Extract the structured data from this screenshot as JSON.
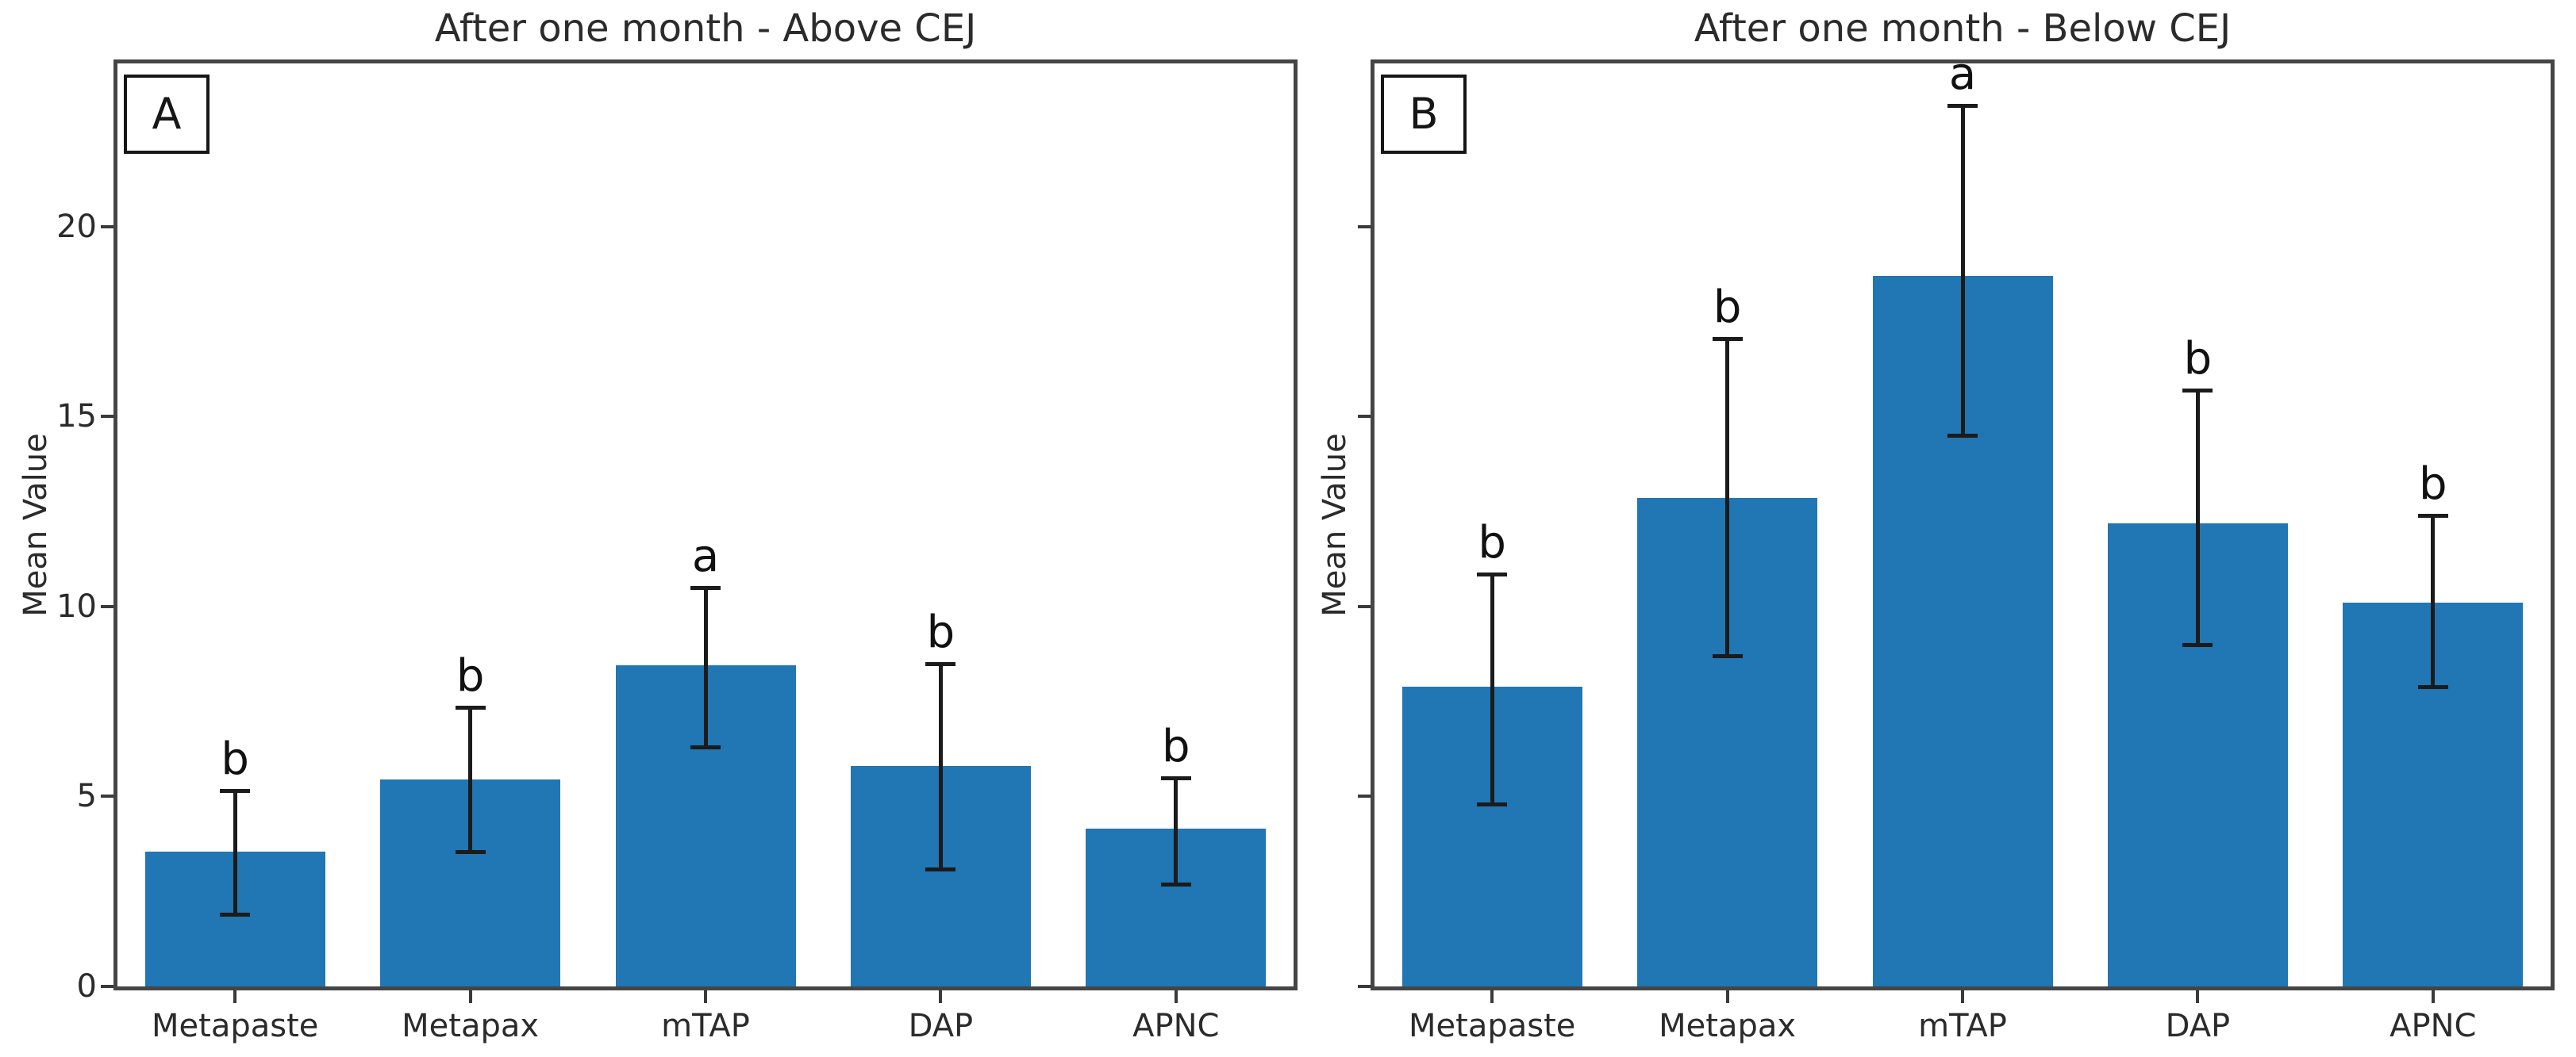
{
  "page": {
    "background": "#ffffff"
  },
  "chart_data": [
    {
      "type": "bar",
      "panel_label": "A",
      "title": "After one month - Above CEJ",
      "ylabel": "Mean Value",
      "categories": [
        "Metapaste",
        "Metapax",
        "mTAP",
        "DAP",
        "APNC"
      ],
      "values": [
        3.55,
        5.45,
        8.45,
        5.8,
        4.15
      ],
      "error_upper": [
        5.15,
        7.35,
        10.5,
        8.5,
        5.5
      ],
      "error_lower": [
        1.9,
        3.55,
        6.3,
        3.1,
        2.7
      ],
      "sig_letters": [
        "b",
        "b",
        "a",
        "b",
        "b"
      ],
      "yticks": [
        0,
        5,
        10,
        15,
        20
      ],
      "ytick_labels": [
        "0",
        "5",
        "10",
        "15",
        "20"
      ],
      "ylim": [
        0,
        24.3
      ],
      "bar_color": "#2176b4",
      "errorbar_color": "#1b1b1b",
      "grid": false,
      "legend": "none"
    },
    {
      "type": "bar",
      "panel_label": "B",
      "title": "After one month - Below CEJ",
      "ylabel": "Mean Value",
      "categories": [
        "Metapaste",
        "Metapax",
        "mTAP",
        "DAP",
        "APNC"
      ],
      "values": [
        7.9,
        12.85,
        18.7,
        12.2,
        10.1
      ],
      "error_upper": [
        10.85,
        17.05,
        23.2,
        15.7,
        12.4
      ],
      "error_lower": [
        4.8,
        8.7,
        14.5,
        9.0,
        7.9
      ],
      "sig_letters": [
        "b",
        "b",
        "a",
        "b",
        "b"
      ],
      "yticks": [
        0,
        5,
        10,
        15,
        20
      ],
      "ytick_labels": [],
      "ylim": [
        0,
        24.3
      ],
      "bar_color": "#2176b4",
      "errorbar_color": "#1b1b1b",
      "grid": false,
      "legend": "none"
    }
  ]
}
